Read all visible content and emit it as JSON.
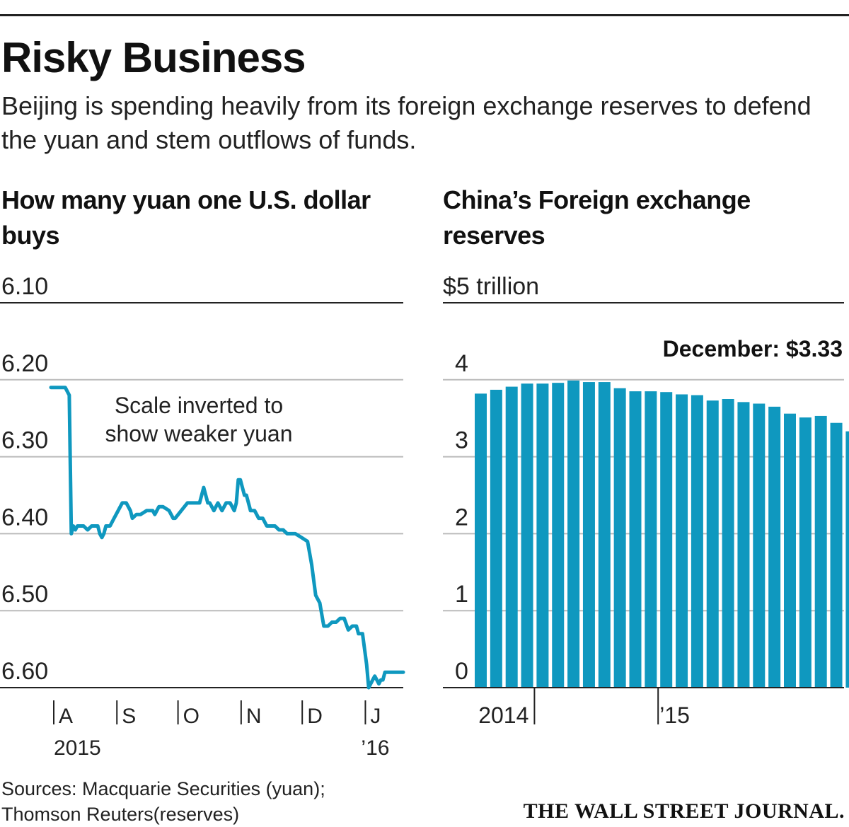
{
  "header": {
    "title": "Risky Business",
    "subtitle": "Beijing is spending heavily from its foreign exchange reserves to defend the yuan and stem outflows of funds."
  },
  "colors": {
    "series": "#0f98bf",
    "grid": "#bbbbbb",
    "axis": "#222222",
    "text": "#111111"
  },
  "chart_data": [
    {
      "type": "line",
      "title": "How many yuan one U.S. dollar buys",
      "annotation": "Scale inverted to show weaker yuan",
      "y_inverted": true,
      "ylim": [
        6.1,
        6.6
      ],
      "yticks": [
        "6.10",
        "6.20",
        "6.30",
        "6.40",
        "6.50",
        "6.60"
      ],
      "xlim": [
        "2015-08-01",
        "2016-01-21"
      ],
      "xticks": [
        {
          "date": "2015-08-01",
          "label": "A",
          "year": "2015"
        },
        {
          "date": "2015-09-01",
          "label": "S",
          "year": ""
        },
        {
          "date": "2015-10-01",
          "label": "O",
          "year": ""
        },
        {
          "date": "2015-11-01",
          "label": "N",
          "year": ""
        },
        {
          "date": "2015-12-01",
          "label": "D",
          "year": ""
        },
        {
          "date": "2016-01-01",
          "label": "J",
          "year": "’16"
        }
      ],
      "grid": true,
      "series": [
        {
          "x": [
            "2015-08-01",
            "2015-08-08",
            "2015-08-10",
            "2015-08-11",
            "2015-08-12",
            "2015-08-13",
            "2015-08-14",
            "2015-08-17",
            "2015-08-19",
            "2015-08-21",
            "2015-08-23",
            "2015-08-24",
            "2015-08-25",
            "2015-08-26",
            "2015-08-27",
            "2015-08-28",
            "2015-08-30",
            "2015-09-01",
            "2015-09-03",
            "2015-09-05",
            "2015-09-06",
            "2015-09-07",
            "2015-09-09",
            "2015-09-10",
            "2015-09-12",
            "2015-09-14",
            "2015-09-17",
            "2015-09-20",
            "2015-09-21",
            "2015-09-23",
            "2015-09-25",
            "2015-09-28",
            "2015-09-30",
            "2015-10-01",
            "2015-10-04",
            "2015-10-07",
            "2015-10-11",
            "2015-10-13",
            "2015-10-14",
            "2015-10-15",
            "2015-10-17",
            "2015-10-18",
            "2015-10-20",
            "2015-10-22",
            "2015-10-24",
            "2015-10-26",
            "2015-10-28",
            "2015-10-30",
            "2015-10-31",
            "2015-11-01",
            "2015-11-02",
            "2015-11-04",
            "2015-11-05",
            "2015-11-07",
            "2015-11-09",
            "2015-11-11",
            "2015-11-13",
            "2015-11-15",
            "2015-11-17",
            "2015-11-19",
            "2015-11-21",
            "2015-11-23",
            "2015-11-25",
            "2015-11-27",
            "2015-11-29",
            "2015-12-02",
            "2015-12-05",
            "2015-12-07",
            "2015-12-09",
            "2015-12-11",
            "2015-12-13",
            "2015-12-15",
            "2015-12-17",
            "2015-12-19",
            "2015-12-21",
            "2015-12-23",
            "2015-12-25",
            "2015-12-27",
            "2015-12-29",
            "2015-12-30",
            "2016-01-01",
            "2016-01-02",
            "2016-01-03",
            "2016-01-04",
            "2016-01-05",
            "2016-01-06",
            "2016-01-07",
            "2016-01-08",
            "2016-01-09",
            "2016-01-10",
            "2016-01-11",
            "2016-01-12",
            "2016-01-14",
            "2016-01-16",
            "2016-01-19",
            "2016-01-21"
          ],
          "y": [
            6.21,
            6.21,
            6.22,
            6.4,
            6.39,
            6.395,
            6.39,
            6.39,
            6.395,
            6.39,
            6.39,
            6.39,
            6.4,
            6.405,
            6.4,
            6.39,
            6.39,
            6.38,
            6.37,
            6.36,
            6.36,
            6.36,
            6.37,
            6.38,
            6.375,
            6.375,
            6.37,
            6.37,
            6.375,
            6.365,
            6.365,
            6.37,
            6.38,
            6.38,
            6.37,
            6.36,
            6.36,
            6.36,
            6.35,
            6.34,
            6.36,
            6.36,
            6.37,
            6.36,
            6.37,
            6.36,
            6.36,
            6.37,
            6.36,
            6.33,
            6.33,
            6.35,
            6.35,
            6.37,
            6.37,
            6.38,
            6.38,
            6.39,
            6.39,
            6.39,
            6.395,
            6.395,
            6.4,
            6.4,
            6.4,
            6.405,
            6.41,
            6.44,
            6.48,
            6.49,
            6.52,
            6.52,
            6.515,
            6.515,
            6.51,
            6.51,
            6.525,
            6.52,
            6.52,
            6.53,
            6.53,
            6.55,
            6.57,
            6.6,
            6.595,
            6.59,
            6.585,
            6.59,
            6.595,
            6.59,
            6.59,
            6.58,
            6.58,
            6.58,
            6.58,
            6.58
          ]
        }
      ]
    },
    {
      "type": "bar",
      "title": "China’s Foreign exchange reserves",
      "unit_label": "$5 trillion",
      "ylim": [
        0,
        5
      ],
      "yticks": [
        "0",
        "1",
        "2",
        "3",
        "4"
      ],
      "xticks": [
        {
          "index": 4,
          "label": "2014"
        },
        {
          "index": 12,
          "label": "’15"
        }
      ],
      "grid": true,
      "annotation": {
        "prefix": "December: ",
        "value": "$3.33"
      },
      "categories": [
        "Dec 2013",
        "Jan 2014",
        "Feb 2014",
        "Mar 2014",
        "Apr 2014",
        "May 2014",
        "Jun 2014",
        "Jul 2014",
        "Aug 2014",
        "Sep 2014",
        "Oct 2014",
        "Nov 2014",
        "Dec 2014",
        "Jan 2015",
        "Feb 2015",
        "Mar 2015",
        "Apr 2015",
        "May 2015",
        "Jun 2015",
        "Jul 2015",
        "Aug 2015",
        "Sep 2015",
        "Oct 2015",
        "Nov 2015",
        "Dec 2015"
      ],
      "values": [
        3.82,
        3.87,
        3.91,
        3.95,
        3.95,
        3.96,
        3.99,
        3.97,
        3.97,
        3.89,
        3.85,
        3.85,
        3.84,
        3.81,
        3.8,
        3.73,
        3.75,
        3.71,
        3.69,
        3.65,
        3.56,
        3.51,
        3.53,
        3.44,
        3.33
      ]
    }
  ],
  "sources": {
    "line1": "Sources: Macquarie Securities (yuan);",
    "line2": "Thomson Reuters(reserves)"
  },
  "logo": "THE WALL STREET JOURNAL."
}
